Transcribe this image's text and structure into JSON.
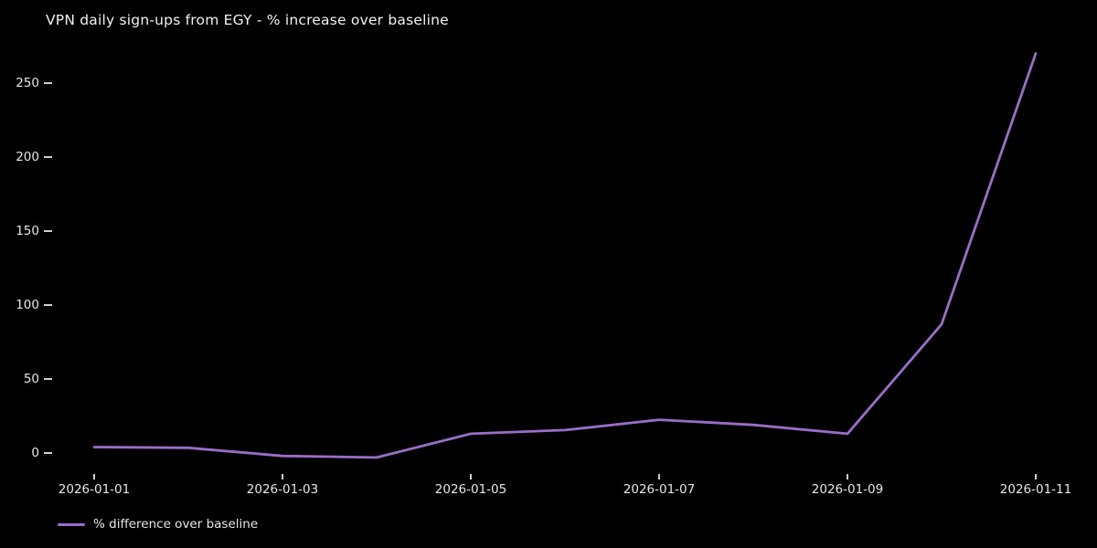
{
  "colors": {
    "background": "#000000",
    "line": "#9a6dc9",
    "title_text": "#f2f2f2",
    "tick_text": "#e6e6e6",
    "tick_mark": "#cfcfcf",
    "legend_text": "#e6e6e6"
  },
  "chart_data": {
    "type": "line",
    "title": "VPN daily sign-ups from EGY - % increase over baseline",
    "xlabel": "",
    "ylabel": "",
    "x": [
      "2026-01-01",
      "2026-01-02",
      "2026-01-03",
      "2026-01-04",
      "2026-01-05",
      "2026-01-06",
      "2026-01-07",
      "2026-01-08",
      "2026-01-09",
      "2026-01-10",
      "2026-01-11"
    ],
    "series": [
      {
        "name": "% difference over baseline",
        "values": [
          4,
          3.5,
          -2,
          -3,
          13,
          15.5,
          22.5,
          19,
          13,
          87,
          270
        ]
      }
    ],
    "xtick_labels": [
      "2026-01-01",
      "2026-01-03",
      "2026-01-05",
      "2026-01-07",
      "2026-01-09",
      "2026-01-11"
    ],
    "ytick_values": [
      0,
      50,
      100,
      150,
      200,
      250
    ],
    "ylim": [
      -15,
      281
    ],
    "grid": false,
    "legend_position": "lower-left"
  }
}
